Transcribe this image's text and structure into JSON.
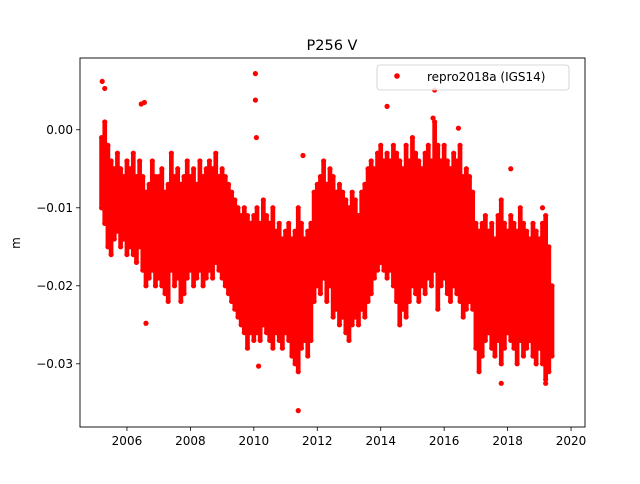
{
  "chart_data": {
    "type": "scatter",
    "title": "P256 V",
    "xlabel": "",
    "ylabel": "m",
    "xlim": [
      2004.52,
      2020.44
    ],
    "ylim": [
      -0.0381,
      0.0092
    ],
    "xticks": [
      2006,
      2008,
      2010,
      2012,
      2014,
      2016,
      2018,
      2020
    ],
    "xtick_labels": [
      "2006",
      "2008",
      "2010",
      "2012",
      "2014",
      "2016",
      "2018",
      "2020"
    ],
    "yticks": [
      0.0,
      -0.01,
      -0.02,
      -0.03
    ],
    "ytick_labels": [
      "0.00",
      "−0.01",
      "−0.02",
      "−0.03"
    ],
    "grid": false,
    "legend_position": "top-right",
    "series": [
      {
        "name": "repro2018a (IGS14)",
        "color": "#ff0000",
        "marker": "dot",
        "envelope_x_step": 0.1,
        "envelope": [
          [
            2005.2,
            -0.001,
            -0.01
          ],
          [
            2005.3,
            0.001,
            -0.012
          ],
          [
            2005.4,
            -0.002,
            -0.015
          ],
          [
            2005.5,
            -0.004,
            -0.016
          ],
          [
            2005.6,
            -0.005,
            -0.014
          ],
          [
            2005.7,
            -0.003,
            -0.013
          ],
          [
            2005.8,
            -0.005,
            -0.015
          ],
          [
            2005.9,
            -0.006,
            -0.014
          ],
          [
            2006.0,
            -0.004,
            -0.016
          ],
          [
            2006.1,
            -0.005,
            -0.015
          ],
          [
            2006.2,
            -0.003,
            -0.016
          ],
          [
            2006.3,
            -0.006,
            -0.017
          ],
          [
            2006.4,
            -0.004,
            -0.015
          ],
          [
            2006.5,
            -0.006,
            -0.018
          ],
          [
            2006.6,
            -0.008,
            -0.02
          ],
          [
            2006.7,
            -0.007,
            -0.019
          ],
          [
            2006.8,
            -0.004,
            -0.018
          ],
          [
            2006.9,
            -0.006,
            -0.02
          ],
          [
            2007.0,
            -0.006,
            -0.019
          ],
          [
            2007.1,
            -0.005,
            -0.02
          ],
          [
            2007.2,
            -0.008,
            -0.021
          ],
          [
            2007.3,
            -0.007,
            -0.022
          ],
          [
            2007.4,
            -0.003,
            -0.018
          ],
          [
            2007.5,
            -0.006,
            -0.02
          ],
          [
            2007.6,
            -0.005,
            -0.019
          ],
          [
            2007.7,
            -0.007,
            -0.022
          ],
          [
            2007.8,
            -0.006,
            -0.021
          ],
          [
            2007.9,
            -0.004,
            -0.019
          ],
          [
            2008.0,
            -0.006,
            -0.018
          ],
          [
            2008.1,
            -0.005,
            -0.02
          ],
          [
            2008.2,
            -0.007,
            -0.019
          ],
          [
            2008.3,
            -0.004,
            -0.018
          ],
          [
            2008.4,
            -0.006,
            -0.02
          ],
          [
            2008.5,
            -0.005,
            -0.019
          ],
          [
            2008.6,
            -0.004,
            -0.018
          ],
          [
            2008.7,
            -0.005,
            -0.019
          ],
          [
            2008.8,
            -0.003,
            -0.017
          ],
          [
            2008.9,
            -0.006,
            -0.018
          ],
          [
            2009.0,
            -0.005,
            -0.019
          ],
          [
            2009.1,
            -0.006,
            -0.02
          ],
          [
            2009.2,
            -0.007,
            -0.021
          ],
          [
            2009.3,
            -0.008,
            -0.022
          ],
          [
            2009.4,
            -0.009,
            -0.023
          ],
          [
            2009.5,
            -0.01,
            -0.024
          ],
          [
            2009.6,
            -0.011,
            -0.025
          ],
          [
            2009.7,
            -0.01,
            -0.026
          ],
          [
            2009.8,
            -0.011,
            -0.028
          ],
          [
            2009.9,
            -0.012,
            -0.026
          ],
          [
            2010.0,
            -0.011,
            -0.027
          ],
          [
            2010.1,
            -0.01,
            -0.026
          ],
          [
            2010.2,
            -0.012,
            -0.027
          ],
          [
            2010.3,
            -0.009,
            -0.025
          ],
          [
            2010.4,
            -0.011,
            -0.026
          ],
          [
            2010.5,
            -0.012,
            -0.027
          ],
          [
            2010.6,
            -0.01,
            -0.028
          ],
          [
            2010.7,
            -0.013,
            -0.026
          ],
          [
            2010.8,
            -0.012,
            -0.027
          ],
          [
            2010.9,
            -0.014,
            -0.028
          ],
          [
            2011.0,
            -0.013,
            -0.026
          ],
          [
            2011.1,
            -0.012,
            -0.027
          ],
          [
            2011.2,
            -0.014,
            -0.029
          ],
          [
            2011.3,
            -0.013,
            -0.03
          ],
          [
            2011.4,
            -0.01,
            -0.031
          ],
          [
            2011.5,
            -0.012,
            -0.028
          ],
          [
            2011.6,
            -0.014,
            -0.027
          ],
          [
            2011.7,
            -0.013,
            -0.029
          ],
          [
            2011.8,
            -0.012,
            -0.027
          ],
          [
            2011.9,
            -0.008,
            -0.022
          ],
          [
            2012.0,
            -0.007,
            -0.02
          ],
          [
            2012.1,
            -0.006,
            -0.021
          ],
          [
            2012.2,
            -0.004,
            -0.019
          ],
          [
            2012.3,
            -0.007,
            -0.022
          ],
          [
            2012.4,
            -0.005,
            -0.02
          ],
          [
            2012.5,
            -0.006,
            -0.024
          ],
          [
            2012.6,
            -0.008,
            -0.023
          ],
          [
            2012.7,
            -0.007,
            -0.025
          ],
          [
            2012.8,
            -0.008,
            -0.024
          ],
          [
            2012.9,
            -0.009,
            -0.026
          ],
          [
            2013.0,
            -0.01,
            -0.027
          ],
          [
            2013.1,
            -0.008,
            -0.025
          ],
          [
            2013.2,
            -0.009,
            -0.024
          ],
          [
            2013.3,
            -0.011,
            -0.025
          ],
          [
            2013.4,
            -0.008,
            -0.023
          ],
          [
            2013.5,
            -0.007,
            -0.024
          ],
          [
            2013.6,
            -0.005,
            -0.022
          ],
          [
            2013.7,
            -0.004,
            -0.021
          ],
          [
            2013.8,
            -0.005,
            -0.019
          ],
          [
            2013.9,
            -0.003,
            -0.018
          ],
          [
            2014.0,
            -0.002,
            -0.017
          ],
          [
            2014.1,
            -0.004,
            -0.018
          ],
          [
            2014.2,
            -0.003,
            -0.019
          ],
          [
            2014.3,
            -0.004,
            -0.018
          ],
          [
            2014.4,
            -0.002,
            -0.02
          ],
          [
            2014.5,
            -0.003,
            -0.022
          ],
          [
            2014.6,
            -0.004,
            -0.025
          ],
          [
            2014.7,
            -0.005,
            -0.023
          ],
          [
            2014.8,
            -0.002,
            -0.024
          ],
          [
            2014.9,
            -0.004,
            -0.022
          ],
          [
            2015.0,
            -0.001,
            -0.02
          ],
          [
            2015.1,
            -0.003,
            -0.021
          ],
          [
            2015.2,
            -0.004,
            -0.022
          ],
          [
            2015.3,
            -0.005,
            -0.02
          ],
          [
            2015.4,
            -0.003,
            -0.021
          ],
          [
            2015.5,
            -0.002,
            -0.019
          ],
          [
            2015.6,
            -0.004,
            -0.02
          ],
          [
            2015.7,
            0.001,
            -0.018
          ],
          [
            2015.8,
            -0.002,
            -0.023
          ],
          [
            2015.9,
            -0.004,
            -0.02
          ],
          [
            2016.0,
            -0.002,
            -0.019
          ],
          [
            2016.1,
            -0.004,
            -0.021
          ],
          [
            2016.2,
            -0.005,
            -0.022
          ],
          [
            2016.3,
            -0.003,
            -0.02
          ],
          [
            2016.4,
            -0.004,
            -0.021
          ],
          [
            2016.5,
            -0.002,
            -0.022
          ],
          [
            2016.6,
            -0.006,
            -0.024
          ],
          [
            2016.7,
            -0.005,
            -0.023
          ],
          [
            2016.8,
            -0.006,
            -0.022
          ],
          [
            2016.9,
            -0.008,
            -0.023
          ],
          [
            2017.0,
            -0.012,
            -0.028
          ],
          [
            2017.1,
            -0.013,
            -0.031
          ],
          [
            2017.2,
            -0.012,
            -0.029
          ],
          [
            2017.3,
            -0.011,
            -0.027
          ],
          [
            2017.4,
            -0.013,
            -0.026
          ],
          [
            2017.5,
            -0.012,
            -0.028
          ],
          [
            2017.6,
            -0.014,
            -0.029
          ],
          [
            2017.7,
            -0.011,
            -0.027
          ],
          [
            2017.8,
            -0.009,
            -0.03
          ],
          [
            2017.9,
            -0.012,
            -0.028
          ],
          [
            2018.0,
            -0.013,
            -0.026
          ],
          [
            2018.1,
            -0.011,
            -0.027
          ],
          [
            2018.2,
            -0.012,
            -0.028
          ],
          [
            2018.3,
            -0.013,
            -0.03
          ],
          [
            2018.4,
            -0.01,
            -0.027
          ],
          [
            2018.5,
            -0.012,
            -0.029
          ],
          [
            2018.6,
            -0.013,
            -0.028
          ],
          [
            2018.7,
            -0.014,
            -0.027
          ],
          [
            2018.8,
            -0.012,
            -0.029
          ],
          [
            2018.9,
            -0.013,
            -0.03
          ],
          [
            2019.0,
            -0.014,
            -0.028
          ],
          [
            2019.1,
            -0.012,
            -0.03
          ],
          [
            2019.2,
            -0.011,
            -0.032
          ],
          [
            2019.3,
            -0.015,
            -0.031
          ],
          [
            2019.4,
            -0.02,
            -0.029
          ]
        ],
        "outliers": [
          [
            2005.22,
            0.0062
          ],
          [
            2005.3,
            0.0053
          ],
          [
            2006.45,
            0.0033
          ],
          [
            2006.55,
            0.0035
          ],
          [
            2006.6,
            -0.0248
          ],
          [
            2010.05,
            0.0072
          ],
          [
            2010.05,
            0.0038
          ],
          [
            2010.08,
            -0.001
          ],
          [
            2010.15,
            -0.0303
          ],
          [
            2011.4,
            -0.036
          ],
          [
            2011.55,
            -0.0033
          ],
          [
            2014.2,
            0.003
          ],
          [
            2015.7,
            0.0051
          ],
          [
            2015.65,
            0.0015
          ],
          [
            2016.45,
            0.0002
          ],
          [
            2017.8,
            -0.0325
          ],
          [
            2018.1,
            -0.005
          ],
          [
            2019.2,
            -0.0325
          ],
          [
            2019.1,
            -0.01
          ]
        ]
      }
    ]
  }
}
